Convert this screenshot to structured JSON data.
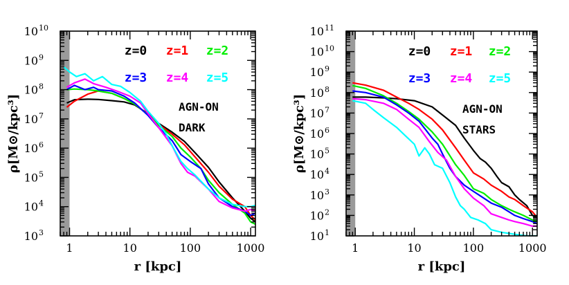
{
  "chart_data": [
    {
      "type": "line",
      "xscale": "log",
      "yscale": "log",
      "xlabel": "r [kpc]",
      "ylabel": "ρ[M⊙/kpc³]",
      "xlim": [
        0.7,
        1200
      ],
      "ylim": [
        1000,
        10000000000
      ],
      "shaded_region_x": [
        0.7,
        1.0
      ],
      "x_ticks": [
        {
          "v": 1,
          "label": "1"
        },
        {
          "v": 10,
          "label": "10"
        },
        {
          "v": 100,
          "label": "100"
        },
        {
          "v": 1000,
          "label": "1000"
        }
      ],
      "y_ticks": [
        {
          "v": 1000.0,
          "base": "10",
          "exp": "3"
        },
        {
          "v": 10000.0,
          "base": "10",
          "exp": "4"
        },
        {
          "v": 100000.0,
          "base": "10",
          "exp": "5"
        },
        {
          "v": 1000000.0,
          "base": "10",
          "exp": "6"
        },
        {
          "v": 10000000.0,
          "base": "10",
          "exp": "7"
        },
        {
          "v": 100000000.0,
          "base": "10",
          "exp": "8"
        },
        {
          "v": 1000000000.0,
          "base": "10",
          "exp": "9"
        },
        {
          "v": 10000000000.0,
          "base": "10",
          "exp": "10"
        }
      ],
      "annotations": [
        "AGN-ON",
        "DARK"
      ],
      "series": [
        {
          "name": "z=0",
          "color": "#000000",
          "x": [
            0.9,
            1.2,
            2,
            3,
            5,
            8,
            12,
            20,
            30,
            50,
            80,
            120,
            200,
            300,
            500,
            800,
            1000,
            1200
          ],
          "y": [
            35000000.0,
            45000000.0,
            47000000.0,
            46000000.0,
            42000000.0,
            38000000.0,
            30000000.0,
            15000000.0,
            7000000.0,
            3500000.0,
            1700000.0,
            700000.0,
            220000.0,
            70000.0,
            20000.0,
            7000.0,
            4000.0,
            3000.0
          ]
        },
        {
          "name": "z=1",
          "color": "#ff0000",
          "x": [
            0.9,
            1.2,
            2,
            3,
            5,
            8,
            12,
            20,
            30,
            50,
            80,
            120,
            200,
            300,
            500,
            800,
            1000,
            1200
          ],
          "y": [
            25000000.0,
            40000000.0,
            70000000.0,
            90000000.0,
            75000000.0,
            50000000.0,
            32000000.0,
            14000000.0,
            6500000.0,
            3000000.0,
            1300000.0,
            500000.0,
            150000.0,
            50000.0,
            18000.0,
            10000.0,
            5000.0,
            3500.0
          ]
        },
        {
          "name": "z=2",
          "color": "#00ee00",
          "x": [
            0.9,
            1.2,
            2,
            3,
            5,
            8,
            12,
            20,
            30,
            50,
            70,
            100,
            150,
            200,
            300,
            500,
            800,
            1000,
            1200
          ],
          "y": [
            100000000.0,
            105000000.0,
            100000000.0,
            90000000.0,
            75000000.0,
            50000000.0,
            32000000.0,
            14000000.0,
            6000000.0,
            2500000.0,
            1000000.0,
            500000.0,
            200000.0,
            80000.0,
            30000.0,
            12000.0,
            6000.0,
            3000.0,
            2500.0
          ]
        },
        {
          "name": "z=3",
          "color": "#0000ff",
          "x": [
            0.9,
            1.2,
            1.8,
            2.5,
            3,
            5,
            8,
            12,
            20,
            30,
            50,
            70,
            100,
            150,
            200,
            300,
            500,
            800,
            1000,
            1200
          ],
          "y": [
            100000000.0,
            140000000.0,
            100000000.0,
            120000000.0,
            100000000.0,
            90000000.0,
            60000000.0,
            35000000.0,
            13000000.0,
            5000000.0,
            1800000.0,
            600000.0,
            350000.0,
            200000.0,
            60000.0,
            20000.0,
            10000.0,
            7000.0,
            5000.0,
            6000.0
          ]
        },
        {
          "name": "z=4",
          "color": "#ff00ff",
          "x": [
            0.9,
            1.2,
            1.8,
            2.5,
            4,
            6,
            10,
            15,
            20,
            30,
            50,
            70,
            90,
            120,
            200,
            300,
            500,
            800,
            1000,
            1200
          ],
          "y": [
            120000000.0,
            170000000.0,
            230000000.0,
            160000000.0,
            120000000.0,
            90000000.0,
            60000000.0,
            35000000.0,
            15000000.0,
            5000000.0,
            1200000.0,
            300000.0,
            150000.0,
            110000.0,
            40000.0,
            15000.0,
            9000.0,
            7000.0,
            8000.0,
            7000.0
          ]
        },
        {
          "name": "z=5",
          "color": "#00ffff",
          "x": [
            0.8,
            1,
            1.3,
            1.8,
            2.5,
            3.5,
            5,
            7,
            10,
            15,
            20,
            30,
            40,
            50,
            70,
            90,
            120,
            200,
            300,
            500,
            800,
            1000,
            1200
          ],
          "y": [
            600000000.0,
            400000000.0,
            280000000.0,
            350000000.0,
            200000000.0,
            280000000.0,
            150000000.0,
            130000000.0,
            80000000.0,
            40000000.0,
            18000000.0,
            7000000.0,
            3000000.0,
            1200000.0,
            350000.0,
            200000.0,
            120000.0,
            40000.0,
            20000.0,
            12000.0,
            10000.0,
            10000.0,
            11000.0
          ]
        }
      ]
    },
    {
      "type": "line",
      "xscale": "log",
      "yscale": "log",
      "xlabel": "r [kpc]",
      "ylabel": "ρ[M⊙/kpc³]",
      "xlim": [
        0.7,
        1200
      ],
      "ylim": [
        10,
        100000000000
      ],
      "shaded_region_x": [
        0.7,
        1.0
      ],
      "x_ticks": [
        {
          "v": 1,
          "label": "1"
        },
        {
          "v": 10,
          "label": "10"
        },
        {
          "v": 100,
          "label": "100"
        },
        {
          "v": 1000,
          "label": "1000"
        }
      ],
      "y_ticks": [
        {
          "v": 10.0,
          "base": "10",
          "exp": "1"
        },
        {
          "v": 100.0,
          "base": "10",
          "exp": "2"
        },
        {
          "v": 1000.0,
          "base": "10",
          "exp": "3"
        },
        {
          "v": 10000.0,
          "base": "10",
          "exp": "4"
        },
        {
          "v": 100000.0,
          "base": "10",
          "exp": "5"
        },
        {
          "v": 1000000.0,
          "base": "10",
          "exp": "6"
        },
        {
          "v": 10000000.0,
          "base": "10",
          "exp": "7"
        },
        {
          "v": 100000000.0,
          "base": "10",
          "exp": "8"
        },
        {
          "v": 1000000000.0,
          "base": "10",
          "exp": "9"
        },
        {
          "v": 10000000000.0,
          "base": "10",
          "exp": "10"
        },
        {
          "v": 100000000000.0,
          "base": "10",
          "exp": "11"
        }
      ],
      "annotations": [
        "AGN-ON",
        "STARS"
      ],
      "series": [
        {
          "name": "z=0",
          "color": "#000000",
          "x": [
            0.9,
            1.5,
            3,
            5,
            10,
            20,
            30,
            50,
            70,
            100,
            130,
            160,
            200,
            250,
            300,
            400,
            500,
            600,
            800,
            1000,
            1200
          ],
          "y": [
            60000000.0,
            60000000.0,
            55000000.0,
            50000000.0,
            40000000.0,
            20000000.0,
            8000000.0,
            2500000.0,
            600000.0,
            150000.0,
            60000.0,
            40000.0,
            20000.0,
            8000.0,
            4000.0,
            2500.0,
            1000.0,
            600,
            300,
            100,
            80
          ]
        },
        {
          "name": "z=1",
          "color": "#ff0000",
          "x": [
            0.9,
            1.5,
            3,
            5,
            8,
            12,
            20,
            30,
            50,
            70,
            100,
            150,
            200,
            300,
            400,
            500,
            700,
            1000,
            1200
          ],
          "y": [
            300000000.0,
            230000000.0,
            130000000.0,
            60000000.0,
            30000000.0,
            15000000.0,
            5000000.0,
            1500000.0,
            200000.0,
            50000.0,
            12000.0,
            6000.0,
            3000.0,
            1500.0,
            800,
            600,
            300,
            150,
            80
          ]
        },
        {
          "name": "z=2",
          "color": "#00ee00",
          "x": [
            0.9,
            1.5,
            3,
            5,
            8,
            12,
            20,
            30,
            50,
            70,
            100,
            150,
            200,
            300,
            400,
            500,
            700,
            1000,
            1200
          ],
          "y": [
            220000000.0,
            160000000.0,
            70000000.0,
            30000000.0,
            12000000.0,
            5000000.0,
            1200000.0,
            300000.0,
            30000.0,
            9000.0,
            2000.0,
            1200.0,
            600,
            300,
            200,
            150,
            100,
            60,
            50
          ]
        },
        {
          "name": "z=3",
          "color": "#0000ff",
          "x": [
            0.9,
            1.5,
            3,
            5,
            8,
            12,
            20,
            25,
            30,
            40,
            50,
            70,
            100,
            150,
            200,
            300,
            400,
            500,
            700,
            1000,
            1200
          ],
          "y": [
            120000000.0,
            100000000.0,
            60000000.0,
            25000000.0,
            10000000.0,
            4000000.0,
            600000.0,
            300000.0,
            100000.0,
            20000.0,
            8000.0,
            3000.0,
            1500.0,
            700,
            400,
            250,
            150,
            100,
            70,
            50,
            40
          ]
        },
        {
          "name": "z=4",
          "color": "#ff00ff",
          "x": [
            0.9,
            1.5,
            3,
            5,
            8,
            12,
            18,
            25,
            35,
            50,
            70,
            100,
            150,
            200,
            300,
            400,
            500,
            700,
            1000,
            1200
          ],
          "y": [
            50000000.0,
            45000000.0,
            30000000.0,
            15000000.0,
            5000000.0,
            2000000.0,
            400000.0,
            120000.0,
            50000.0,
            8000.0,
            2000.0,
            700,
            300,
            120,
            80,
            60,
            50,
            40,
            30,
            30
          ]
        },
        {
          "name": "z=5",
          "color": "#00ffff",
          "x": [
            0.9,
            1.5,
            2,
            3,
            5,
            7,
            10,
            12,
            15,
            18,
            22,
            30,
            40,
            50,
            60,
            70,
            90,
            120,
            160,
            200,
            300,
            500,
            800,
            1000,
            1200
          ],
          "y": [
            40000000.0,
            30000000.0,
            15000000.0,
            6000000.0,
            2000000.0,
            800000.0,
            300000.0,
            80000.0,
            200000.0,
            100000.0,
            30000.0,
            20000.0,
            4000.0,
            800,
            300,
            200,
            80,
            60,
            40,
            20,
            15,
            12,
            10,
            10,
            10
          ]
        }
      ]
    }
  ]
}
